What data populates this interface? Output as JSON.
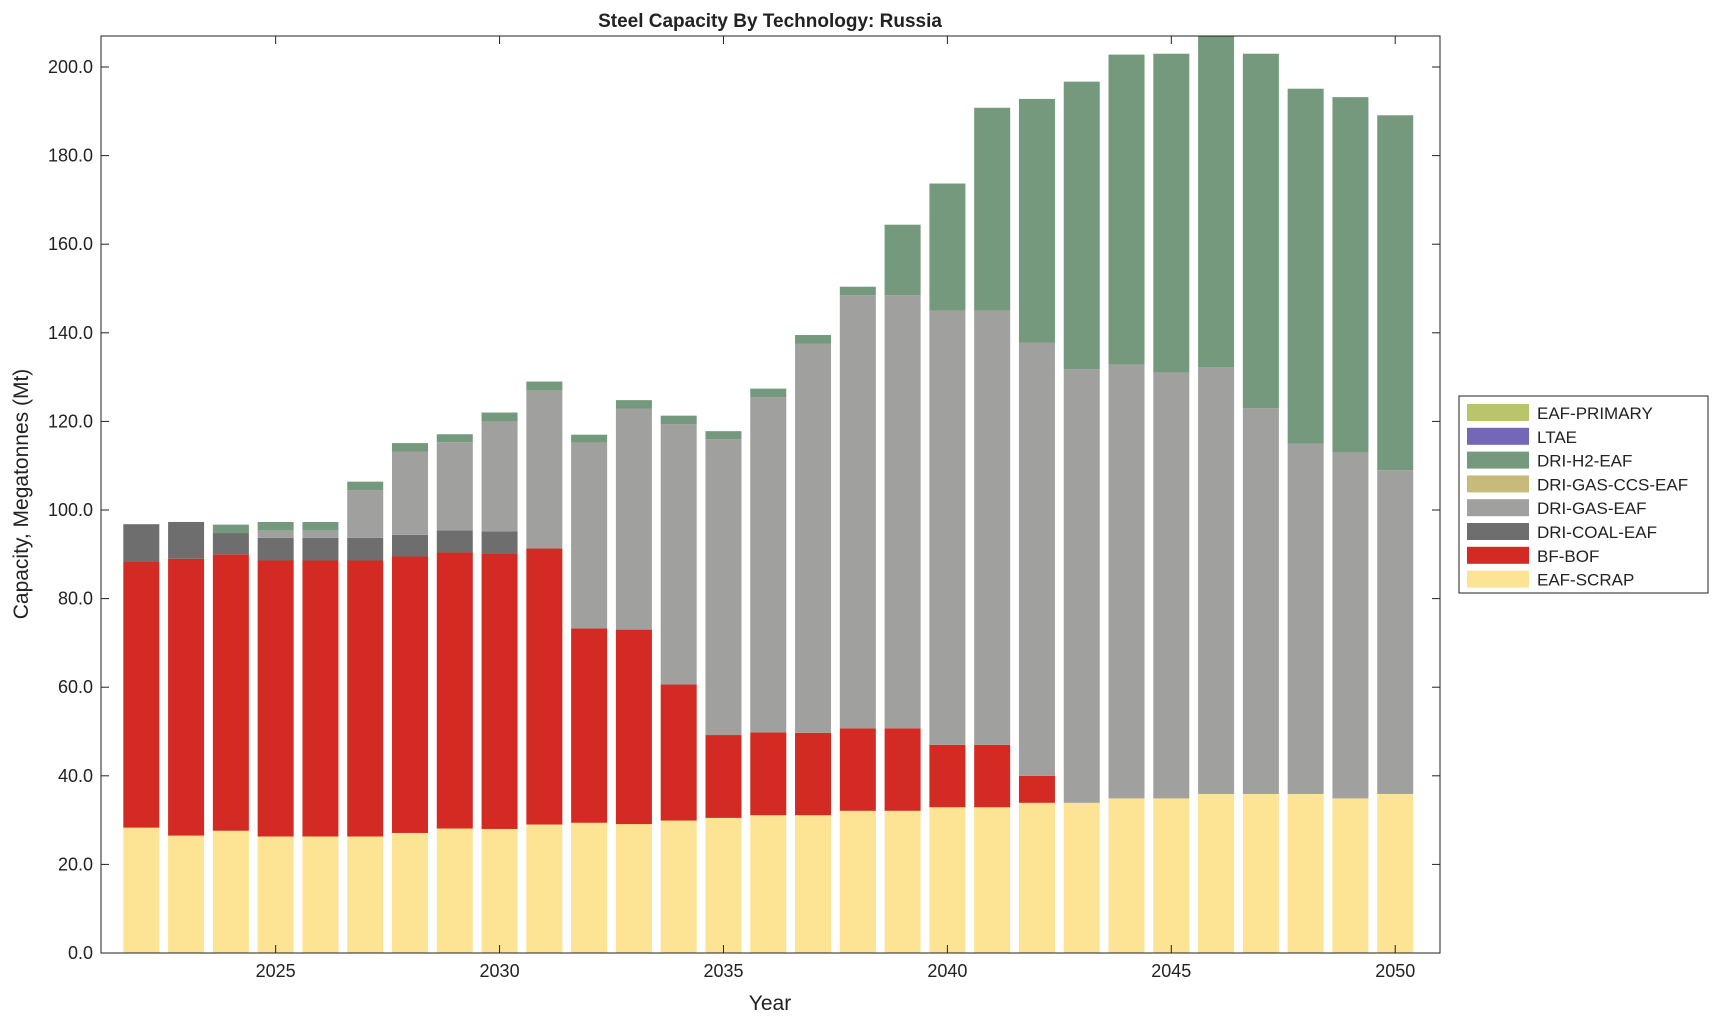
{
  "chart_data": {
    "type": "bar",
    "stacked": true,
    "title": "Steel Capacity By Technology: Russia",
    "xlabel": "Year",
    "ylabel": "Capacity, Megatonnes (Mt)",
    "ylim": [
      0,
      207
    ],
    "xlim": [
      2021.1,
      2051.0
    ],
    "yticks": [
      0,
      20,
      40,
      60,
      80,
      100,
      120,
      140,
      160,
      180,
      200
    ],
    "ytick_labels": [
      "0.0",
      "20.0",
      "40.0",
      "60.0",
      "80.0",
      "100.0",
      "120.0",
      "140.0",
      "160.0",
      "180.0",
      "200.0"
    ],
    "xticks": [
      2025,
      2030,
      2035,
      2040,
      2045,
      2050
    ],
    "xtick_labels": [
      "2025",
      "2030",
      "2035",
      "2040",
      "2045",
      "2050"
    ],
    "legend_position": "right",
    "categories": [
      2022,
      2023,
      2024,
      2025,
      2026,
      2027,
      2028,
      2029,
      2030,
      2031,
      2032,
      2033,
      2034,
      2035,
      2036,
      2037,
      2038,
      2039,
      2040,
      2041,
      2042,
      2043,
      2044,
      2045,
      2046,
      2047,
      2048,
      2049,
      2050
    ],
    "series": [
      {
        "name": "EAF-SCRAP",
        "color": "#fde394",
        "values": [
          28.3,
          26.5,
          27.6,
          26.3,
          26.3,
          26.3,
          27.1,
          28.1,
          28.0,
          29.0,
          29.4,
          29.1,
          29.9,
          30.5,
          31.1,
          31.1,
          32.1,
          32.1,
          32.9,
          32.9,
          33.9,
          33.9,
          34.9,
          34.9,
          35.9,
          35.9,
          35.9,
          34.9,
          35.9
        ]
      },
      {
        "name": "BF-BOF",
        "color": "#d32a24",
        "values": [
          60.1,
          62.5,
          62.4,
          62.3,
          62.3,
          62.3,
          62.4,
          62.3,
          62.2,
          62.3,
          43.9,
          43.9,
          30.7,
          18.7,
          18.7,
          18.6,
          18.6,
          18.6,
          14.1,
          14.1,
          6.1,
          0,
          0,
          0,
          0,
          0,
          0,
          0,
          0
        ]
      },
      {
        "name": "DRI-COAL-EAF",
        "color": "#6e6e6e",
        "values": [
          8.4,
          8.3,
          4.8,
          5.1,
          5.1,
          5.1,
          4.9,
          5.0,
          5.0,
          0,
          0,
          0,
          0,
          0,
          0,
          0,
          0,
          0,
          0,
          0,
          0,
          0,
          0,
          0,
          0,
          0,
          0,
          0,
          0
        ]
      },
      {
        "name": "DRI-GAS-EAF",
        "color": "#a0a09e",
        "values": [
          0,
          0,
          0,
          1.7,
          1.7,
          10.8,
          18.8,
          19.9,
          24.8,
          35.7,
          41.9,
          49.9,
          58.8,
          66.8,
          75.7,
          87.8,
          97.8,
          97.8,
          98.0,
          98.0,
          97.8,
          97.9,
          97.9,
          96.1,
          96.3,
          87.1,
          79.1,
          78.1,
          73.1
        ]
      },
      {
        "name": "DRI-GAS-CCS-EAF",
        "color": "#c6bb7b",
        "values": [
          0,
          0,
          0,
          0,
          0,
          0,
          0,
          0,
          0,
          0,
          0,
          0,
          0,
          0,
          0,
          0,
          0,
          0,
          0,
          0,
          0,
          0,
          0,
          0,
          0,
          0,
          0,
          0,
          0
        ]
      },
      {
        "name": "DRI-H2-EAF",
        "color": "#74997c",
        "values": [
          0,
          0,
          1.9,
          1.9,
          1.9,
          1.9,
          1.9,
          1.8,
          2.0,
          2.0,
          1.8,
          1.9,
          1.9,
          1.8,
          1.9,
          2.0,
          1.9,
          15.9,
          28.7,
          45.8,
          55.0,
          64.9,
          70.0,
          72.0,
          75.0,
          80.0,
          80.1,
          80.2,
          80.1
        ]
      },
      {
        "name": "LTAE",
        "color": "#7467b8",
        "values": [
          0,
          0,
          0,
          0,
          0,
          0,
          0,
          0,
          0,
          0,
          0,
          0,
          0,
          0,
          0,
          0,
          0,
          0,
          0,
          0,
          0,
          0,
          0,
          0,
          0,
          0,
          0,
          0,
          0
        ]
      },
      {
        "name": "EAF-PRIMARY",
        "color": "#bac46b",
        "values": [
          0,
          0,
          0,
          0,
          0,
          0,
          0,
          0,
          0,
          0,
          0,
          0,
          0,
          0,
          0,
          0,
          0,
          0,
          0,
          0,
          0,
          0,
          0,
          0,
          0,
          0,
          0,
          0,
          0
        ]
      }
    ],
    "legend_order": [
      "EAF-PRIMARY",
      "LTAE",
      "DRI-H2-EAF",
      "DRI-GAS-CCS-EAF",
      "DRI-GAS-EAF",
      "DRI-COAL-EAF",
      "BF-BOF",
      "EAF-SCRAP"
    ]
  }
}
